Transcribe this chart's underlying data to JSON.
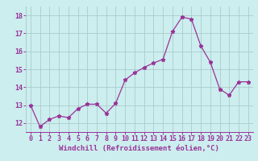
{
  "x": [
    0,
    1,
    2,
    3,
    4,
    5,
    6,
    7,
    8,
    9,
    10,
    11,
    12,
    13,
    14,
    15,
    16,
    17,
    18,
    19,
    20,
    21,
    22,
    23
  ],
  "y": [
    13.0,
    11.8,
    12.2,
    12.4,
    12.3,
    12.8,
    13.05,
    13.05,
    12.55,
    13.1,
    14.4,
    14.8,
    15.1,
    15.35,
    15.55,
    17.1,
    17.9,
    17.8,
    16.3,
    15.4,
    13.9,
    13.55,
    14.3,
    14.3
  ],
  "line_color": "#993399",
  "marker": "*",
  "marker_size": 3.5,
  "bg_color": "#cceeee",
  "grid_color": "#aacccc",
  "xlabel": "Windchill (Refroidissement éolien,°C)",
  "ylim": [
    11.5,
    18.5
  ],
  "xlim": [
    -0.5,
    23.5
  ],
  "yticks": [
    12,
    13,
    14,
    15,
    16,
    17,
    18
  ],
  "xticks": [
    0,
    1,
    2,
    3,
    4,
    5,
    6,
    7,
    8,
    9,
    10,
    11,
    12,
    13,
    14,
    15,
    16,
    17,
    18,
    19,
    20,
    21,
    22,
    23
  ],
  "xtick_labels": [
    "0",
    "1",
    "2",
    "3",
    "4",
    "5",
    "6",
    "7",
    "8",
    "9",
    "10",
    "11",
    "12",
    "13",
    "14",
    "15",
    "16",
    "17",
    "18",
    "19",
    "20",
    "21",
    "22",
    "23"
  ],
  "xlabel_color": "#993399",
  "tick_color": "#993399",
  "label_fontsize": 6.5,
  "tick_fontsize": 6.0
}
